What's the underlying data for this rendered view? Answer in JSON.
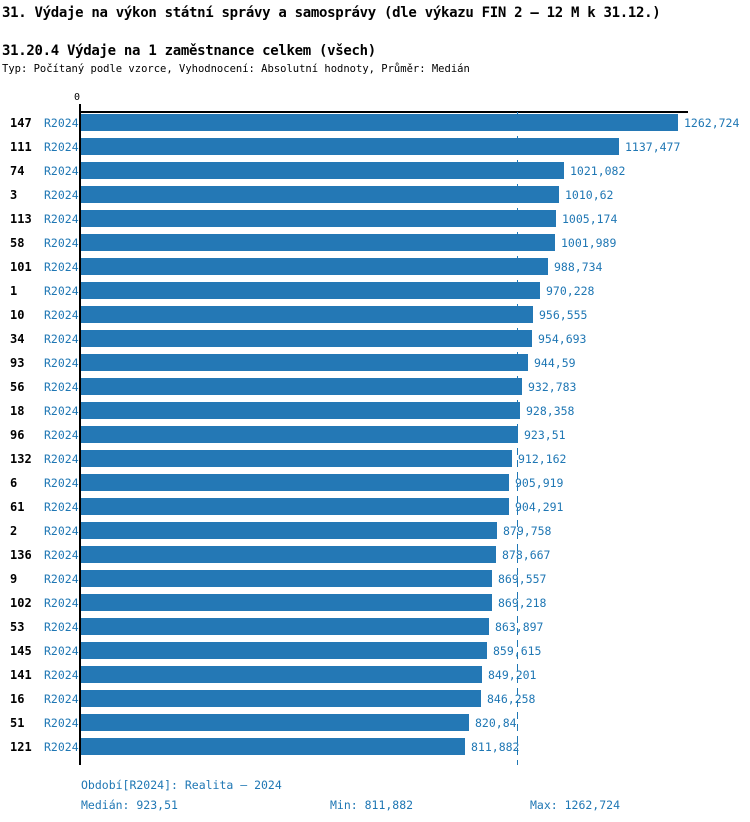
{
  "header": {
    "title": "31. Výdaje na výkon státní správy a samosprávy (dle výkazu FIN 2 – 12 M k 31.12.)",
    "subtitle": "31.20.4 Výdaje na 1 zaměstnance celkem (všech)",
    "meta": "Typ: Počítaný podle vzorce, Vyhodnocení: Absolutní hodnoty, Průměr: Medián"
  },
  "chart_data": {
    "type": "bar",
    "orientation": "horizontal",
    "title": "31.20.4 Výdaje na 1 zaměstnance celkem (všech)",
    "axis_zero_label": "0",
    "xlim": [
      0,
      1262.724
    ],
    "grid": false,
    "legend_position": "none",
    "series_name": "R2024",
    "bar_color": "#2478b5",
    "text_color": "#1f77b4",
    "median_value": 923.51,
    "min_value": 811.882,
    "max_value": 1262.724,
    "categories": [
      "147",
      "111",
      "74",
      "3",
      "113",
      "58",
      "101",
      "1",
      "10",
      "34",
      "93",
      "56",
      "18",
      "96",
      "132",
      "6",
      "61",
      "2",
      "136",
      "9",
      "102",
      "53",
      "145",
      "141",
      "16",
      "51",
      "121"
    ],
    "rows": [
      {
        "id": "147",
        "period": "R2024",
        "value": 1262.724,
        "value_label": "1262,724"
      },
      {
        "id": "111",
        "period": "R2024",
        "value": 1137.477,
        "value_label": "1137,477"
      },
      {
        "id": "74",
        "period": "R2024",
        "value": 1021.082,
        "value_label": "1021,082"
      },
      {
        "id": "3",
        "period": "R2024",
        "value": 1010.62,
        "value_label": "1010,62"
      },
      {
        "id": "113",
        "period": "R2024",
        "value": 1005.174,
        "value_label": "1005,174"
      },
      {
        "id": "58",
        "period": "R2024",
        "value": 1001.989,
        "value_label": "1001,989"
      },
      {
        "id": "101",
        "period": "R2024",
        "value": 988.734,
        "value_label": "988,734"
      },
      {
        "id": "1",
        "period": "R2024",
        "value": 970.228,
        "value_label": "970,228"
      },
      {
        "id": "10",
        "period": "R2024",
        "value": 956.555,
        "value_label": "956,555"
      },
      {
        "id": "34",
        "period": "R2024",
        "value": 954.693,
        "value_label": "954,693"
      },
      {
        "id": "93",
        "period": "R2024",
        "value": 944.59,
        "value_label": "944,59"
      },
      {
        "id": "56",
        "period": "R2024",
        "value": 932.783,
        "value_label": "932,783"
      },
      {
        "id": "18",
        "period": "R2024",
        "value": 928.358,
        "value_label": "928,358"
      },
      {
        "id": "96",
        "period": "R2024",
        "value": 923.51,
        "value_label": "923,51"
      },
      {
        "id": "132",
        "period": "R2024",
        "value": 912.162,
        "value_label": "912,162"
      },
      {
        "id": "6",
        "period": "R2024",
        "value": 905.919,
        "value_label": "905,919"
      },
      {
        "id": "61",
        "period": "R2024",
        "value": 904.291,
        "value_label": "904,291"
      },
      {
        "id": "2",
        "period": "R2024",
        "value": 879.758,
        "value_label": "879,758"
      },
      {
        "id": "136",
        "period": "R2024",
        "value": 878.667,
        "value_label": "878,667"
      },
      {
        "id": "9",
        "period": "R2024",
        "value": 869.557,
        "value_label": "869,557"
      },
      {
        "id": "102",
        "period": "R2024",
        "value": 869.218,
        "value_label": "869,218"
      },
      {
        "id": "53",
        "period": "R2024",
        "value": 863.897,
        "value_label": "863,897"
      },
      {
        "id": "145",
        "period": "R2024",
        "value": 859.615,
        "value_label": "859,615"
      },
      {
        "id": "141",
        "period": "R2024",
        "value": 849.201,
        "value_label": "849,201"
      },
      {
        "id": "16",
        "period": "R2024",
        "value": 846.258,
        "value_label": "846,258"
      },
      {
        "id": "51",
        "period": "R2024",
        "value": 820.84,
        "value_label": "820,84"
      },
      {
        "id": "121",
        "period": "R2024",
        "value": 811.882,
        "value_label": "811,882"
      }
    ]
  },
  "footer": {
    "period": "Období[R2024]: Realita – 2024",
    "median": "Medián: 923,51",
    "min": "Min: 811,882",
    "max": "Max: 1262,724"
  }
}
